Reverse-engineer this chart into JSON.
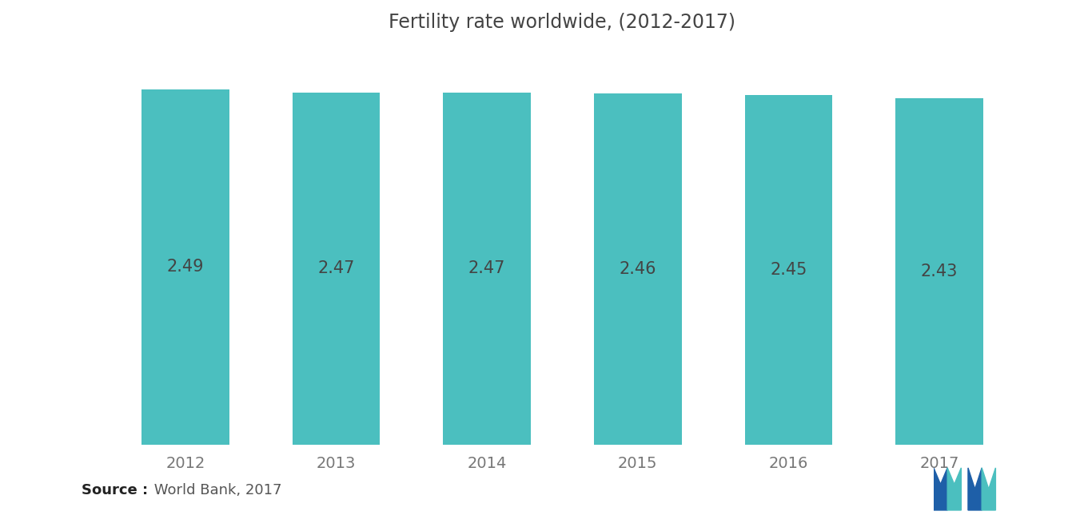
{
  "title": "Fertility rate worldwide, (2012-2017)",
  "categories": [
    "2012",
    "2013",
    "2014",
    "2015",
    "2016",
    "2017"
  ],
  "values": [
    2.49,
    2.47,
    2.47,
    2.46,
    2.45,
    2.43
  ],
  "bar_color": "#4BBFBF",
  "label_color": "#444444",
  "background_color": "#ffffff",
  "title_fontsize": 17,
  "label_fontsize": 15,
  "tick_fontsize": 14,
  "ylim_min": 0,
  "ylim_max": 2.75,
  "source_bold": "Source :",
  "source_text": " World Bank, 2017"
}
